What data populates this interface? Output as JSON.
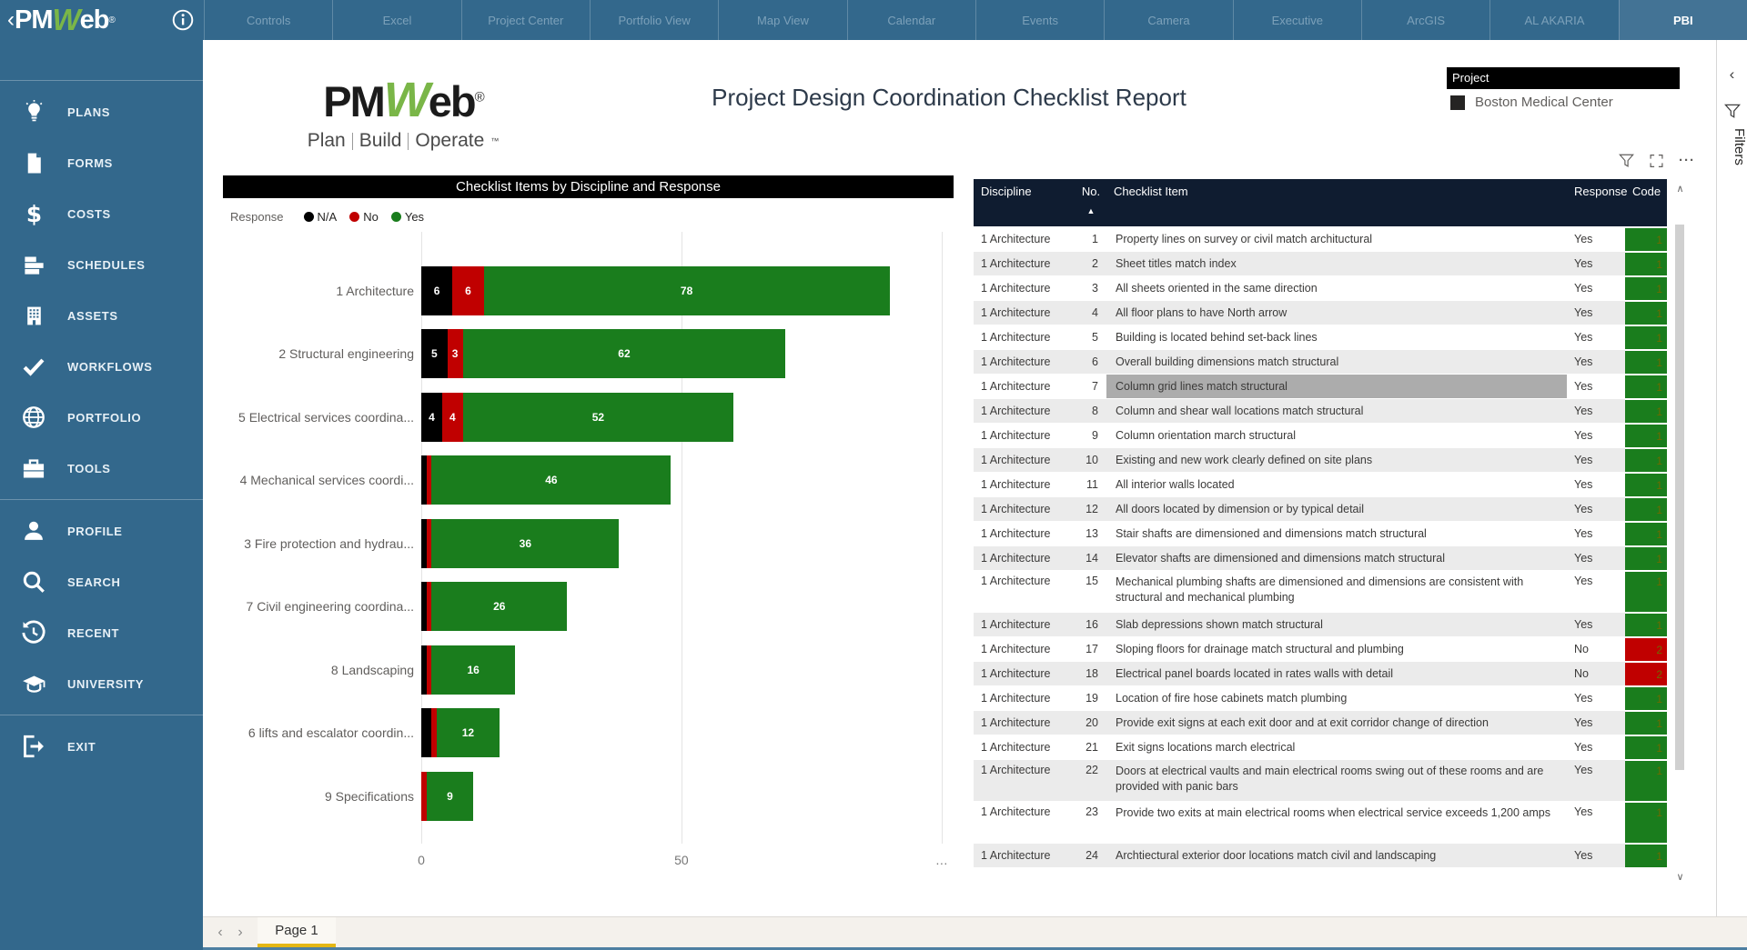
{
  "colors": {
    "nav_blue": "#33688C",
    "logo_green": "#7AB648",
    "tab_underline_yellow": "#E4B714",
    "table_header_navy": "#0F1C30",
    "highlight_gray": "#ACACAC"
  },
  "nav": {
    "logo": {
      "chevron": "‹",
      "part1": "PM",
      "part2": "W",
      "part3": "eb",
      "reg": "®"
    },
    "tabs": [
      "Controls",
      "Excel",
      "Project Center",
      "Portfolio View",
      "Map View",
      "Calendar",
      "Events",
      "Camera",
      "Executive",
      "ArcGIS",
      "AL AKARIA",
      "PBI"
    ],
    "active_tab": "PBI"
  },
  "sidebar": {
    "groups": [
      {
        "items": [
          {
            "id": "plans",
            "label": "PLANS",
            "icon": "lightbulb-icon"
          },
          {
            "id": "forms",
            "label": "FORMS",
            "icon": "document-icon"
          },
          {
            "id": "costs",
            "label": "COSTS",
            "icon": "dollar-icon"
          },
          {
            "id": "schedules",
            "label": "SCHEDULES",
            "icon": "bars-icon"
          },
          {
            "id": "assets",
            "label": "ASSETS",
            "icon": "building-icon"
          },
          {
            "id": "workflows",
            "label": "WORKFLOWS",
            "icon": "checkmark-icon"
          },
          {
            "id": "portfolio",
            "label": "PORTFOLIO",
            "icon": "globe-icon"
          },
          {
            "id": "tools",
            "label": "TOOLS",
            "icon": "briefcase-icon"
          }
        ]
      },
      {
        "items": [
          {
            "id": "profile",
            "label": "PROFILE",
            "icon": "person-icon"
          },
          {
            "id": "search",
            "label": "SEARCH",
            "icon": "magnifier-icon"
          },
          {
            "id": "recent",
            "label": "RECENT",
            "icon": "history-icon"
          },
          {
            "id": "university",
            "label": "UNIVERSITY",
            "icon": "graduation-cap-icon"
          }
        ]
      },
      {
        "items": [
          {
            "id": "exit",
            "label": "EXIT",
            "icon": "exit-icon"
          }
        ]
      }
    ]
  },
  "report": {
    "title": "Project Design Coordination Checklist Report",
    "logo": {
      "part1": "PM",
      "part2": "W",
      "part3": "eb",
      "reg": "®"
    },
    "logo_tagline": [
      "Plan",
      "Build",
      "Operate"
    ],
    "logo_tm": "™",
    "slicer": {
      "title": "Project",
      "selected_item": "Boston Medical Center"
    },
    "visual_toolbar": {
      "more_label": "···"
    },
    "filters_pane_label": "Filters",
    "page_tab_label": "Page 1"
  },
  "chart_data": {
    "type": "bar",
    "orientation": "horizontal",
    "stacked": true,
    "title": "Checklist Items by Discipline and Response",
    "legend_title": "Response",
    "legend_position": "top-left",
    "grid": true,
    "categories": [
      "1 Architecture",
      "2 Structural engineering",
      "5 Electrical services coordina...",
      "4 Mechanical services coordi...",
      "3 Fire protection and hydrau...",
      "7 Civil engineering coordina...",
      "8 Landscaping",
      "6 lifts and escalator coordin...",
      "9 Specifications"
    ],
    "series": [
      {
        "name": "N/A",
        "color": "#000000",
        "values": [
          6,
          5,
          4,
          1,
          1,
          1,
          1,
          2,
          0
        ]
      },
      {
        "name": "No",
        "color": "#C00000",
        "values": [
          6,
          3,
          4,
          1,
          1,
          1,
          1,
          1,
          1
        ]
      },
      {
        "name": "Yes",
        "color": "#1A7D1D",
        "values": [
          78,
          62,
          52,
          46,
          36,
          26,
          16,
          12,
          9
        ]
      }
    ],
    "xticks": [
      {
        "value": 0,
        "label": "0"
      },
      {
        "value": 50,
        "label": "50"
      },
      {
        "value": 100,
        "label": "…"
      }
    ],
    "xlim": [
      0,
      102.3
    ],
    "min_label_value": 3
  },
  "table": {
    "columns": [
      "Discipline",
      "No.",
      "Checklist Item",
      "Response",
      "Code"
    ],
    "sort_column": "No.",
    "sort_direction": "ascending",
    "code_colors": {
      "1": "#1A7D1D",
      "2": "#C00000"
    },
    "highlighted": {
      "row_no": 7,
      "column": "Checklist Item"
    },
    "tall_rows": [
      15,
      22,
      23
    ],
    "rows": [
      [
        "1 Architecture",
        1,
        "Property lines on survey or civil match archituctural",
        "Yes",
        1
      ],
      [
        "1 Architecture",
        2,
        "Sheet titles match index",
        "Yes",
        1
      ],
      [
        "1 Architecture",
        3,
        "All sheets oriented in the same direction",
        "Yes",
        1
      ],
      [
        "1 Architecture",
        4,
        "All floor plans to have North arrow",
        "Yes",
        1
      ],
      [
        "1 Architecture",
        5,
        "Building is located behind set-back lines",
        "Yes",
        1
      ],
      [
        "1 Architecture",
        6,
        "Overall building dimensions match structural",
        "Yes",
        1
      ],
      [
        "1 Architecture",
        7,
        "Column grid lines match structural",
        "Yes",
        1
      ],
      [
        "1 Architecture",
        8,
        "Column and shear wall locations match structural",
        "Yes",
        1
      ],
      [
        "1 Architecture",
        9,
        "Column orientation march structural",
        "Yes",
        1
      ],
      [
        "1 Architecture",
        10,
        "Existing and new work clearly defined on site plans",
        "Yes",
        1
      ],
      [
        "1 Architecture",
        11,
        "All interior walls located",
        "Yes",
        1
      ],
      [
        "1 Architecture",
        12,
        "All doors located by dimension or by typical detail",
        "Yes",
        1
      ],
      [
        "1 Architecture",
        13,
        "Stair shafts are dimensioned and dimensions match structural",
        "Yes",
        1
      ],
      [
        "1 Architecture",
        14,
        "Elevator shafts are dimensioned and dimensions match structural",
        "Yes",
        1
      ],
      [
        "1 Architecture",
        15,
        "Mechanical plumbing shafts are dimensioned and dimensions are consistent with structural and mechanical plumbing",
        "Yes",
        1
      ],
      [
        "1 Architecture",
        16,
        "Slab depressions shown match structural",
        "Yes",
        1
      ],
      [
        "1 Architecture",
        17,
        "Sloping floors for drainage match structural and plumbing",
        "No",
        2
      ],
      [
        "1 Architecture",
        18,
        "Electrical panel boards located in rates walls with detail",
        "No",
        2
      ],
      [
        "1 Architecture",
        19,
        "Location of fire hose cabinets match plumbing",
        "Yes",
        1
      ],
      [
        "1 Architecture",
        20,
        "Provide exit signs at each exit door and at exit corridor change of direction",
        "Yes",
        1
      ],
      [
        "1 Architecture",
        21,
        "Exit signs locations march electrical",
        "Yes",
        1
      ],
      [
        "1 Architecture",
        22,
        "Doors at electrical vaults and main electrical rooms swing out of these rooms and are provided with panic bars",
        "Yes",
        1
      ],
      [
        "1 Architecture",
        23,
        "Provide two exits at main electrical rooms when electrical service exceeds 1,200 amps",
        "Yes",
        1
      ],
      [
        "1 Architecture",
        24,
        "Archtiectural exterior door locations match civil and landscaping",
        "Yes",
        1
      ]
    ]
  }
}
